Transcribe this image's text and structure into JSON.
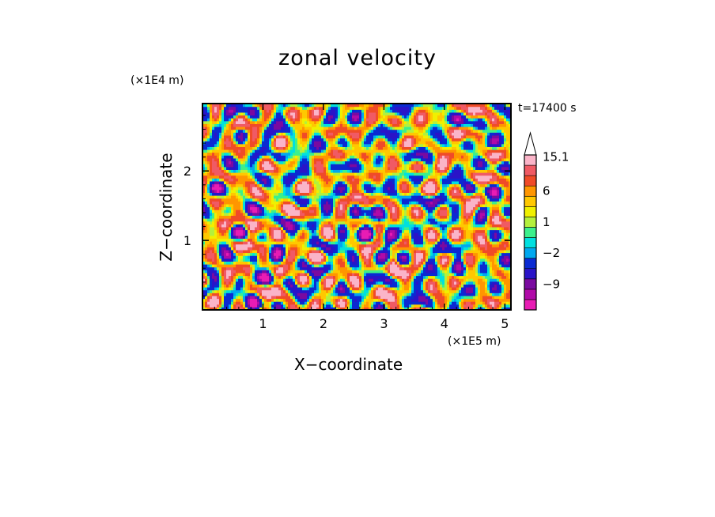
{
  "chart_data": {
    "type": "heatmap",
    "title": "zonal velocity",
    "xlabel": "X−coordinate",
    "ylabel": "Z−coordinate",
    "x_unit_label": "(×1E5 m)",
    "z_unit_label": "(×1E4 m)",
    "time_label": "t=17400 s",
    "xlim": [
      0,
      5.1
    ],
    "ylim": [
      0,
      2.97
    ],
    "x_ticks": [
      1,
      2,
      3,
      4,
      5
    ],
    "x_tick_labels": [
      "1",
      "2",
      "3",
      "4",
      "5"
    ],
    "y_ticks": [
      1,
      2
    ],
    "y_tick_labels": [
      "1",
      "2"
    ],
    "colorbar": {
      "tick_labels": [
        "15.1",
        "6",
        "1",
        "−2",
        "−9"
      ],
      "levels": [
        {
          "value": -15,
          "color": "#e81cb4"
        },
        {
          "value": -12,
          "color": "#b00aa8"
        },
        {
          "value": -9,
          "color": "#7a0aa0"
        },
        {
          "value": -6,
          "color": "#2a14c8"
        },
        {
          "value": -3,
          "color": "#0a2ad2"
        },
        {
          "value": -2,
          "color": "#00a8f0"
        },
        {
          "value": -1,
          "color": "#00e0e0"
        },
        {
          "value": 0,
          "color": "#3cf08c"
        },
        {
          "value": 1,
          "color": "#b4f03c"
        },
        {
          "value": 2,
          "color": "#f0f000"
        },
        {
          "value": 4,
          "color": "#ffc800"
        },
        {
          "value": 6,
          "color": "#ff9600"
        },
        {
          "value": 9,
          "color": "#f04b28"
        },
        {
          "value": 12,
          "color": "#f05a64"
        },
        {
          "value": 15.1,
          "color": "#fab4c8"
        }
      ]
    },
    "field_features": [
      {
        "x": 0.85,
        "z": 0.55,
        "value": -6,
        "sx": 0.08,
        "sz": 0.45
      },
      {
        "x": 0.8,
        "z": 0.9,
        "value": 8,
        "sx": 0.08,
        "sz": 0.3
      },
      {
        "x": 1.45,
        "z": 2.2,
        "value": -5,
        "sx": 0.1,
        "sz": 0.25
      },
      {
        "x": 2.3,
        "z": 1.1,
        "value": -6,
        "sx": 0.12,
        "sz": 0.12
      },
      {
        "x": 2.75,
        "z": 1.1,
        "value": -7,
        "sx": 0.2,
        "sz": 0.15
      },
      {
        "x": 3.05,
        "z": 1.05,
        "value": -8,
        "sx": 0.1,
        "sz": 0.35
      },
      {
        "x": 3.15,
        "z": 0.55,
        "value": 8,
        "sx": 0.08,
        "sz": 0.35
      },
      {
        "x": 3.6,
        "z": 1.6,
        "value": -5,
        "sx": 0.08,
        "sz": 0.12
      },
      {
        "x": 4.25,
        "z": 0.6,
        "value": -7,
        "sx": 0.08,
        "sz": 0.35
      },
      {
        "x": 4.45,
        "z": 1.1,
        "value": 9,
        "sx": 0.18,
        "sz": 0.2
      },
      {
        "x": 4.0,
        "z": 1.1,
        "value": -6,
        "sx": 0.1,
        "sz": 0.1
      },
      {
        "x": 4.9,
        "z": 2.7,
        "value": -5,
        "sx": 0.06,
        "sz": 0.2
      },
      {
        "x": 0.1,
        "z": 2.8,
        "value": -5,
        "sx": 0.06,
        "sz": 0.15
      },
      {
        "x": 1.6,
        "z": 1.7,
        "value": 6,
        "sx": 0.15,
        "sz": 0.12
      },
      {
        "x": 3.95,
        "z": 2.1,
        "value": 6,
        "sx": 0.12,
        "sz": 0.12
      }
    ]
  }
}
